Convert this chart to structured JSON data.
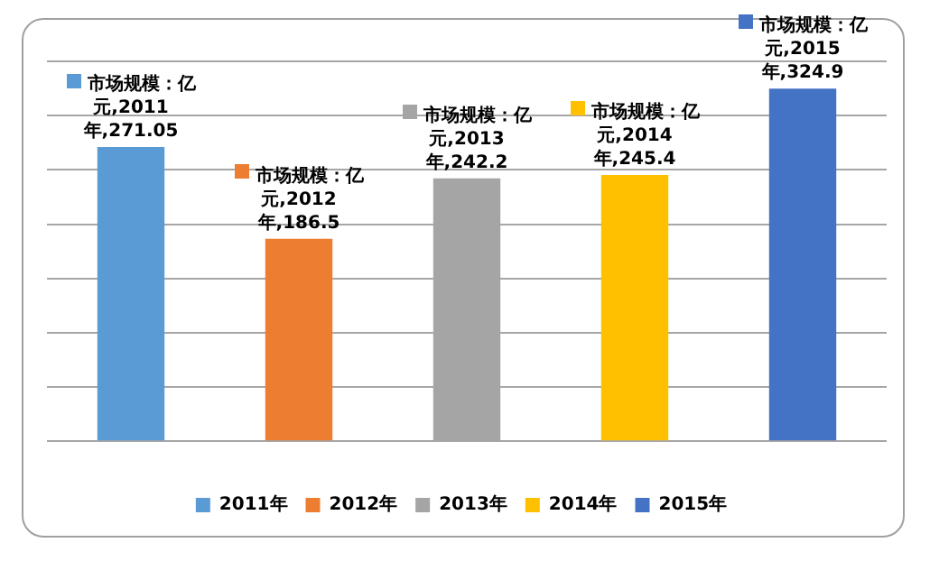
{
  "chart_data": {
    "type": "bar",
    "categories": [
      null,
      null,
      null,
      null,
      null
    ],
    "series": [
      {
        "name": "2011年",
        "color": "#5b9bd5",
        "values": [
          271.05,
          null,
          null,
          null,
          null
        ],
        "value_labels": [
          "市场规模：亿元,2011年,271.05",
          null,
          null,
          null,
          null
        ]
      },
      {
        "name": "2012年",
        "color": "#ed7d31",
        "values": [
          null,
          186.5,
          null,
          null,
          null
        ],
        "value_labels": [
          null,
          "市场规模：亿元,2012年,186.5",
          null,
          null,
          null
        ]
      },
      {
        "name": "2013年",
        "color": "#a5a5a5",
        "values": [
          null,
          null,
          242.2,
          null,
          null
        ],
        "value_labels": [
          null,
          null,
          "市场规模：亿元,2013年,242.2",
          null,
          null
        ]
      },
      {
        "name": "2014年",
        "color": "#ffc000",
        "values": [
          null,
          null,
          null,
          245.4,
          null
        ],
        "value_labels": [
          null,
          null,
          null,
          "市场规模：亿元,2014年,245.4",
          null
        ]
      },
      {
        "name": "2015年",
        "color": "#4472c4",
        "values": [
          null,
          null,
          null,
          null,
          324.9
        ],
        "value_labels": [
          null,
          null,
          null,
          null,
          "市场规模：亿元,2015年,324.9"
        ]
      }
    ],
    "ylim": [
      0,
      350
    ],
    "yticks": [
      {
        "value": 0,
        "label": null
      },
      {
        "value": 50,
        "label": null
      },
      {
        "value": 100,
        "label": null
      },
      {
        "value": 150,
        "label": null
      },
      {
        "value": 200,
        "label": null
      },
      {
        "value": 250,
        "label": null
      },
      {
        "value": 300,
        "label": null
      },
      {
        "value": 350,
        "label": null
      }
    ],
    "grid": "y",
    "stacked": true,
    "legend": "bottom"
  }
}
